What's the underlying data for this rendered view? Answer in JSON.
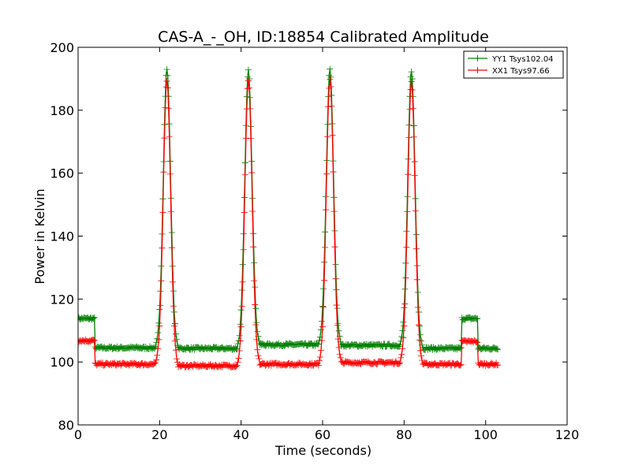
{
  "chart_data": {
    "type": "line",
    "title": "CAS-A_-_OH, ID:18854 Calibrated Amplitude",
    "xlabel": "Time (seconds)",
    "ylabel": "Power in Kelvin",
    "xlim": [
      0,
      120
    ],
    "ylim": [
      80,
      200
    ],
    "xticks": [
      0,
      20,
      40,
      60,
      80,
      100,
      120
    ],
    "yticks": [
      80,
      100,
      120,
      140,
      160,
      180,
      200
    ],
    "grid": false,
    "legend_position": "top-right",
    "marker": "plus",
    "series": [
      {
        "name": "YY1 Tsys102.04",
        "color": "#008000",
        "baseline_segments": [
          {
            "x_start": 0.0,
            "x_end": 4.0,
            "level": 113.8
          },
          {
            "x_start": 4.2,
            "x_end": 19.0,
            "level": 104.5
          },
          {
            "x_start": 24.5,
            "x_end": 39.5,
            "level": 104.3
          },
          {
            "x_start": 44.5,
            "x_end": 59.5,
            "level": 105.5
          },
          {
            "x_start": 64.5,
            "x_end": 79.5,
            "level": 105.3
          },
          {
            "x_start": 84.5,
            "x_end": 94.0,
            "level": 104.3
          },
          {
            "x_start": 94.2,
            "x_end": 98.0,
            "level": 113.8
          },
          {
            "x_start": 98.2,
            "x_end": 103.0,
            "level": 104.3
          }
        ],
        "peaks": [
          {
            "x": 21.8,
            "peak": 193.0
          },
          {
            "x": 41.8,
            "peak": 192.5
          },
          {
            "x": 61.8,
            "peak": 192.8
          },
          {
            "x": 81.8,
            "peak": 192.5
          }
        ]
      },
      {
        "name": "XX1 Tsys97.66",
        "color": "#ff0000",
        "baseline_segments": [
          {
            "x_start": 0.0,
            "x_end": 4.0,
            "level": 106.8
          },
          {
            "x_start": 4.2,
            "x_end": 19.0,
            "level": 99.3
          },
          {
            "x_start": 24.5,
            "x_end": 39.5,
            "level": 98.8
          },
          {
            "x_start": 44.5,
            "x_end": 59.5,
            "level": 99.3
          },
          {
            "x_start": 64.5,
            "x_end": 79.5,
            "level": 99.8
          },
          {
            "x_start": 84.5,
            "x_end": 94.0,
            "level": 99.3
          },
          {
            "x_start": 94.2,
            "x_end": 98.0,
            "level": 106.5
          },
          {
            "x_start": 98.2,
            "x_end": 103.0,
            "level": 99.3
          }
        ],
        "peaks": [
          {
            "x": 21.8,
            "peak": 189.5
          },
          {
            "x": 41.8,
            "peak": 189.0
          },
          {
            "x": 61.8,
            "peak": 189.5
          },
          {
            "x": 81.8,
            "peak": 189.0
          }
        ]
      }
    ]
  }
}
